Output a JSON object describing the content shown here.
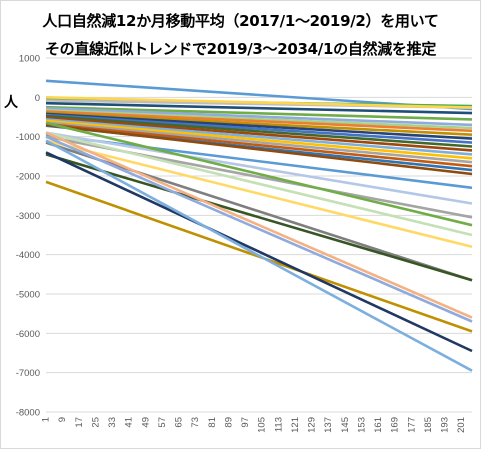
{
  "chart_data": {
    "type": "line",
    "title": "人口自然減12か月移動平均（2017/1～2019/2）を用いて",
    "subtitle": "その直線近似トレンドで2019/3～2034/1の自然減を推定",
    "ylabel": "人",
    "ylim": [
      -8000,
      1000
    ],
    "yticks": [
      1000,
      0,
      -1000,
      -2000,
      -3000,
      -4000,
      -5000,
      -6000,
      -7000,
      -8000
    ],
    "xlim": [
      1,
      206
    ],
    "xticks": [
      1,
      9,
      17,
      25,
      33,
      41,
      49,
      57,
      65,
      73,
      81,
      89,
      97,
      105,
      113,
      121,
      129,
      137,
      145,
      153,
      161,
      169,
      177,
      185,
      193,
      201
    ],
    "grid": "horizontal",
    "series": [
      {
        "x": [
          1,
          206
        ],
        "y": [
          420,
          -300
        ],
        "color": "#5b9bd5"
      },
      {
        "x": [
          1,
          206
        ],
        "y": [
          -50,
          -220
        ],
        "color": "#4caf50"
      },
      {
        "x": [
          1,
          206
        ],
        "y": [
          -80,
          -260
        ],
        "color": "#bdbdbd"
      },
      {
        "x": [
          1,
          206
        ],
        "y": [
          0,
          -260
        ],
        "color": "#ffd54f"
      },
      {
        "x": [
          1,
          206
        ],
        "y": [
          -150,
          -400
        ],
        "color": "#1f4e79"
      },
      {
        "x": [
          1,
          206
        ],
        "y": [
          -250,
          -560
        ],
        "color": "#70ad47"
      },
      {
        "x": [
          1,
          206
        ],
        "y": [
          -280,
          -700
        ],
        "color": "#8faadc"
      },
      {
        "x": [
          1,
          206
        ],
        "y": [
          -330,
          -780
        ],
        "color": "#a9d18e"
      },
      {
        "x": [
          1,
          206
        ],
        "y": [
          -360,
          -850
        ],
        "color": "#ed7d31"
      },
      {
        "x": [
          1,
          206
        ],
        "y": [
          -400,
          -950
        ],
        "color": "#bf9000"
      },
      {
        "x": [
          1,
          206
        ],
        "y": [
          -420,
          -1050
        ],
        "color": "#264478"
      },
      {
        "x": [
          1,
          206
        ],
        "y": [
          -450,
          -1150
        ],
        "color": "#4472c4"
      },
      {
        "x": [
          1,
          206
        ],
        "y": [
          -480,
          -1250
        ],
        "color": "#43682b"
      },
      {
        "x": [
          1,
          206
        ],
        "y": [
          -520,
          -1350
        ],
        "color": "#9e480e"
      },
      {
        "x": [
          1,
          206
        ],
        "y": [
          -560,
          -1450
        ],
        "color": "#7cafdd"
      },
      {
        "x": [
          1,
          206
        ],
        "y": [
          -600,
          -1550
        ],
        "color": "#ffc000"
      },
      {
        "x": [
          1,
          206
        ],
        "y": [
          -640,
          -1650
        ],
        "color": "#a5a5a5"
      },
      {
        "x": [
          1,
          206
        ],
        "y": [
          -680,
          -1750
        ],
        "color": "#c55a11"
      },
      {
        "x": [
          1,
          206
        ],
        "y": [
          -720,
          -1850
        ],
        "color": "#2e75b6"
      },
      {
        "x": [
          1,
          206
        ],
        "y": [
          -700,
          -1950
        ],
        "color": "#8f4a0c"
      },
      {
        "x": [
          1,
          206
        ],
        "y": [
          -950,
          -2300
        ],
        "color": "#5b9bd5"
      },
      {
        "x": [
          1,
          206
        ],
        "y": [
          -900,
          -2700
        ],
        "color": "#b4c7e7"
      },
      {
        "x": [
          1,
          206
        ],
        "y": [
          -1000,
          -3050
        ],
        "color": "#a5a5a5"
      },
      {
        "x": [
          1,
          206
        ],
        "y": [
          -650,
          -3250
        ],
        "color": "#70ad47"
      },
      {
        "x": [
          1,
          206
        ],
        "y": [
          -900,
          -3500
        ],
        "color": "#c5e0b4"
      },
      {
        "x": [
          1,
          206
        ],
        "y": [
          -1100,
          -3800
        ],
        "color": "#ffd966"
      },
      {
        "x": [
          1,
          206
        ],
        "y": [
          -1150,
          -4650
        ],
        "color": "#7f7f7f"
      },
      {
        "x": [
          1,
          206
        ],
        "y": [
          -1450,
          -4650
        ],
        "color": "#375623"
      },
      {
        "x": [
          1,
          206
        ],
        "y": [
          -900,
          -5600
        ],
        "color": "#f4b183"
      },
      {
        "x": [
          1,
          206
        ],
        "y": [
          -2150,
          -5950
        ],
        "color": "#bf9000"
      },
      {
        "x": [
          1,
          206
        ],
        "y": [
          -1000,
          -5700
        ],
        "color": "#8faadc"
      },
      {
        "x": [
          1,
          206
        ],
        "y": [
          -1400,
          -6450
        ],
        "color": "#203864"
      },
      {
        "x": [
          1,
          206
        ],
        "y": [
          -1100,
          -6950
        ],
        "color": "#7cafdd"
      }
    ]
  }
}
